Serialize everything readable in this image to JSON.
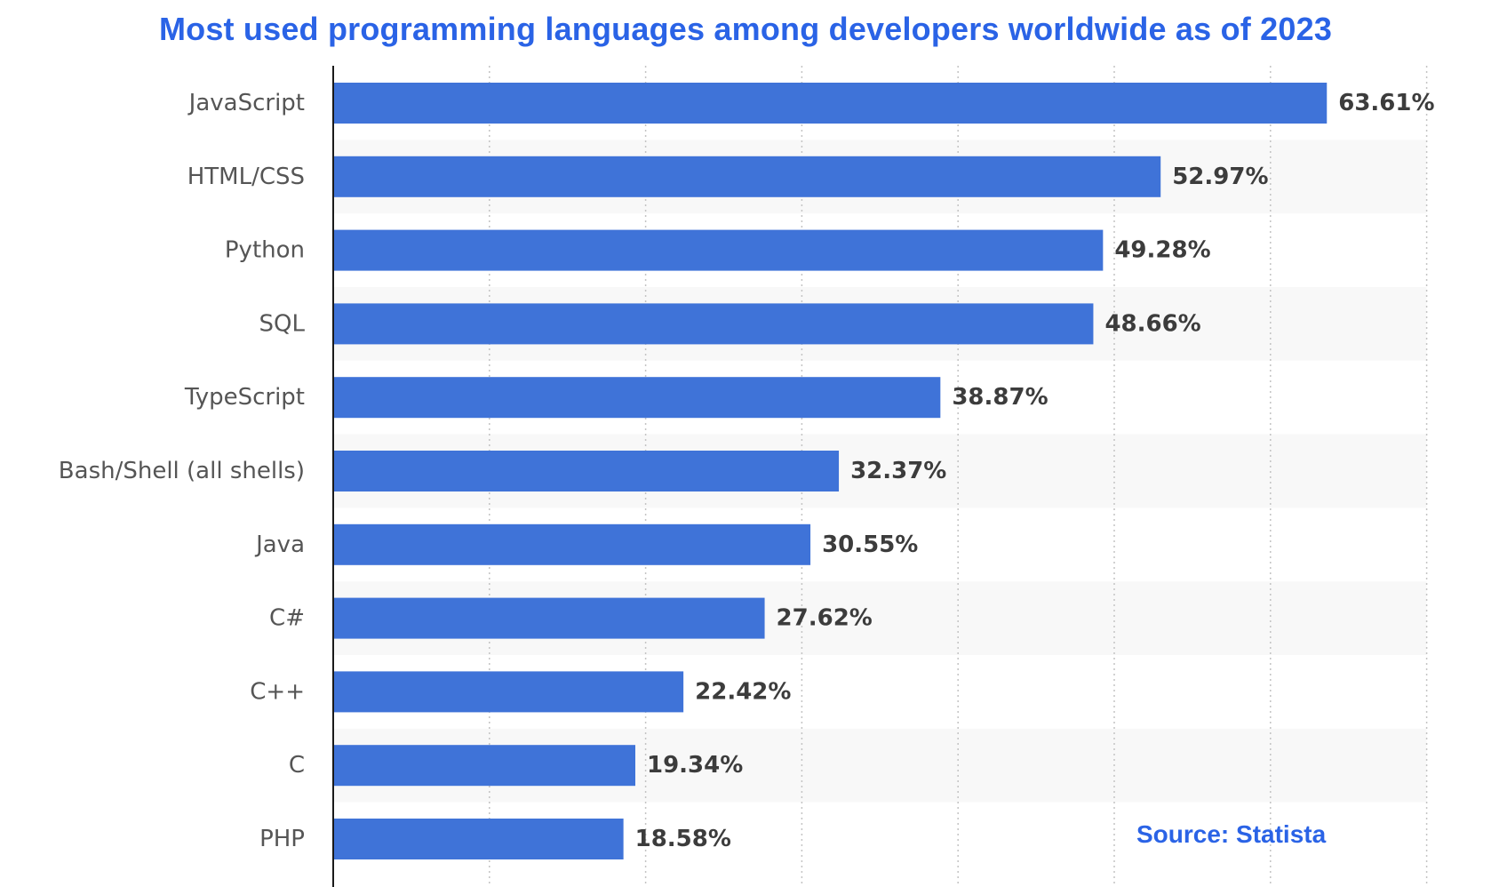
{
  "chart_data": {
    "type": "bar",
    "orientation": "horizontal",
    "title": "Most used programming languages among developers worldwide as of 2023",
    "categories": [
      "JavaScript",
      "HTML/CSS",
      "Python",
      "SQL",
      "TypeScript",
      "Bash/Shell (all shells)",
      "Java",
      "C#",
      "C++",
      "C",
      "PHP"
    ],
    "values": [
      63.61,
      52.97,
      49.28,
      48.66,
      38.87,
      32.37,
      30.55,
      27.62,
      22.42,
      19.34,
      18.58
    ],
    "value_labels": [
      "63.61%",
      "52.97%",
      "49.28%",
      "48.66%",
      "38.87%",
      "32.37%",
      "30.55%",
      "27.62%",
      "22.42%",
      "19.34%",
      "18.58%"
    ],
    "xlim": [
      0,
      70
    ],
    "grid": "vertical dotted",
    "bar_color": "#3f73d8",
    "band_color": "#f8f8f8"
  },
  "source": "Source: Statista",
  "colors": {
    "title": "#2a63e6",
    "source": "#2a63e6"
  }
}
